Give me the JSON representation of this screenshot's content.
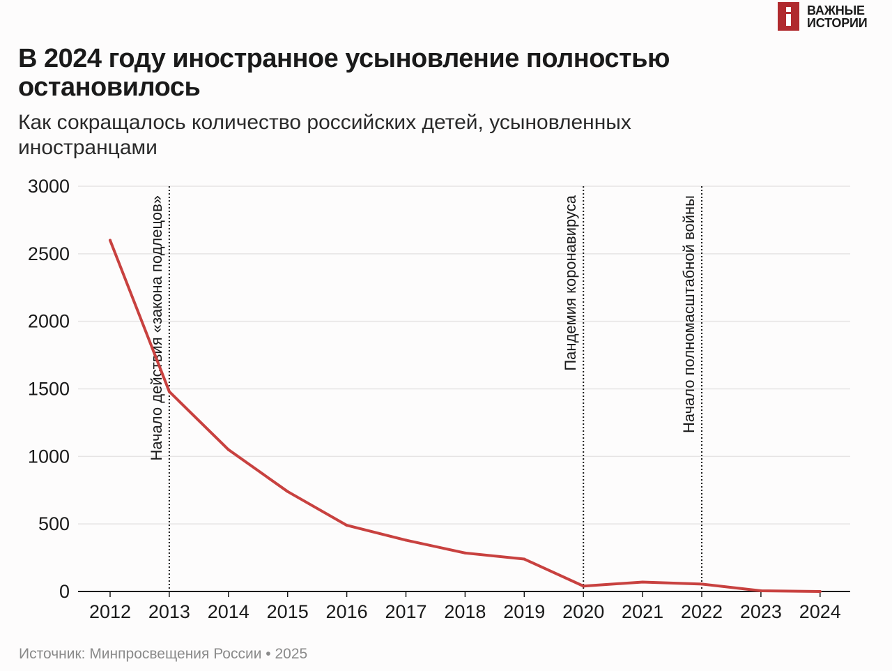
{
  "brand": {
    "mark": "i",
    "line1": "ВАЖНЫЕ",
    "line2": "ИСТОРИИ",
    "color": "#b02a2e"
  },
  "title": "В 2024 году иностранное усыновление полностью остановилось",
  "subtitle": "Как сокращалось количество российских детей, усыновленных иностранцами",
  "source": "Источник: Минпросвещения России • 2025",
  "chart_data": {
    "type": "line",
    "x": [
      "2012",
      "2013",
      "2014",
      "2015",
      "2016",
      "2017",
      "2018",
      "2019",
      "2020",
      "2021",
      "2022",
      "2023",
      "2024"
    ],
    "series": [
      {
        "values": [
          2600,
          1480,
          1050,
          740,
          490,
          380,
          285,
          240,
          40,
          70,
          55,
          5,
          0
        ],
        "color": "#c8413f"
      }
    ],
    "ylim": [
      0,
      3000
    ],
    "yticks": [
      0,
      500,
      1000,
      1500,
      2000,
      2500,
      3000
    ],
    "grid": true,
    "legend": "none",
    "annotations": [
      {
        "x": "2013",
        "text": "Начало действия «закона подлецов»"
      },
      {
        "x": "2020",
        "text": "Пандемия коронавируса"
      },
      {
        "x": "2022",
        "text": "Начало полномасштабной войны"
      }
    ]
  }
}
